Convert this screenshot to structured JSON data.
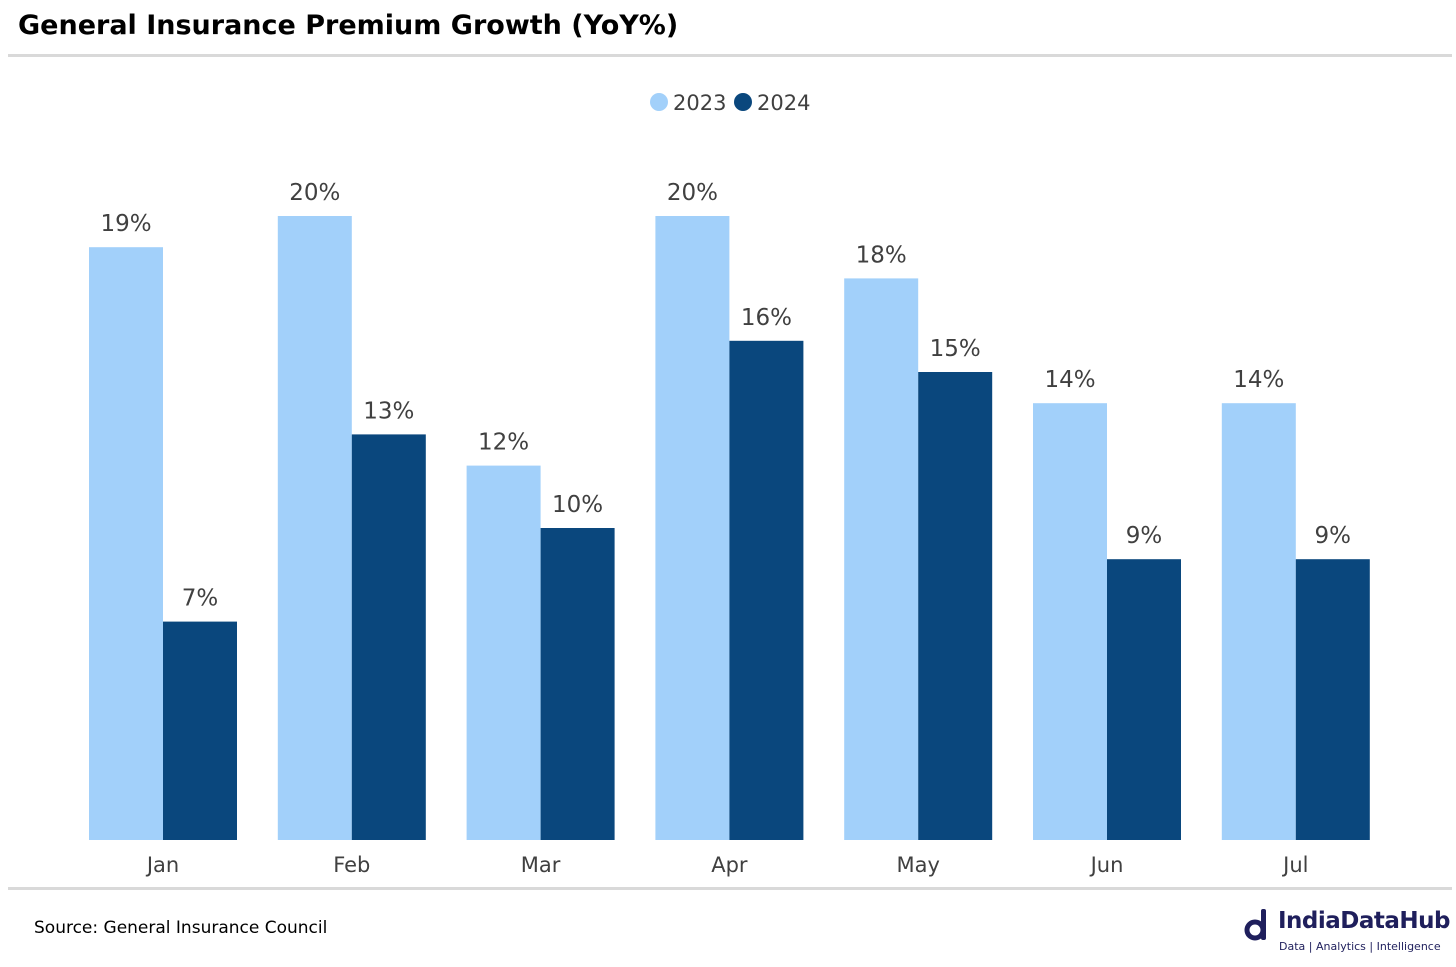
{
  "header": {
    "title": "General Insurance Premium Growth (YoY%)"
  },
  "footer": {
    "source": "Source: General Insurance Council",
    "brand_name": "IndiaDataHub",
    "brand_tagline": "Data | Analytics | Intelligence"
  },
  "colors": {
    "series_2023": "#a2d0fa",
    "series_2024": "#0a477d",
    "rule": "#d9d9d9",
    "brand": "#1f1f5c"
  },
  "chart_data": {
    "type": "bar",
    "title": "General Insurance Premium Growth (YoY%)",
    "categories": [
      "Jan",
      "Feb",
      "Mar",
      "Apr",
      "May",
      "Jun",
      "Jul"
    ],
    "series": [
      {
        "name": "2023",
        "values": [
          19,
          20,
          12,
          20,
          18,
          14,
          14
        ],
        "labels": [
          "19%",
          "20%",
          "12%",
          "20%",
          "18%",
          "14%",
          "14%"
        ]
      },
      {
        "name": "2024",
        "values": [
          7,
          13,
          10,
          16,
          15,
          9,
          9
        ],
        "labels": [
          "7%",
          "13%",
          "10%",
          "16%",
          "15%",
          "9%",
          "9%"
        ]
      }
    ],
    "legend": "top-center",
    "grid": false,
    "ylim": [
      0,
      20
    ],
    "xlabel": "",
    "ylabel": ""
  }
}
